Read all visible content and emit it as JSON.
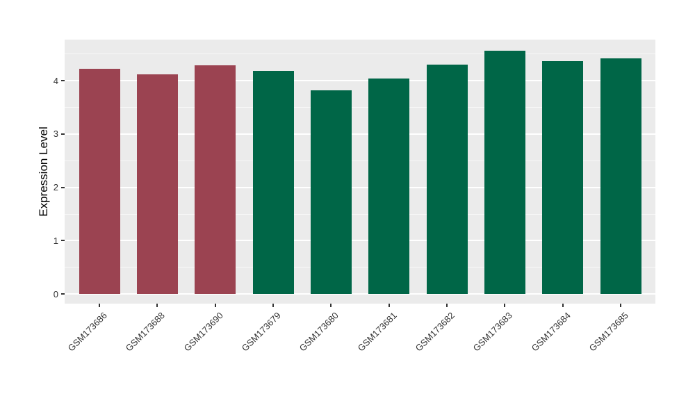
{
  "chart_data": {
    "type": "bar",
    "title": "",
    "ylabel": "Expression Level",
    "xlabel": "",
    "categories": [
      "GSM173686",
      "GSM173688",
      "GSM173690",
      "GSM173679",
      "GSM173680",
      "GSM173681",
      "GSM173682",
      "GSM173683",
      "GSM173684",
      "GSM173685"
    ],
    "values": [
      4.22,
      4.12,
      4.29,
      4.18,
      3.82,
      4.04,
      4.3,
      4.56,
      4.37,
      4.42
    ],
    "bar_colors": [
      "#9B4351",
      "#9B4351",
      "#9B4351",
      "#006647",
      "#006647",
      "#006647",
      "#006647",
      "#006647",
      "#006647",
      "#006647"
    ],
    "y_ticks": [
      "0",
      "1",
      "2",
      "3",
      "4"
    ],
    "y_tick_values": [
      0,
      1,
      2,
      3,
      4
    ],
    "y_minor_tick_values": [
      0.5,
      1.5,
      2.5,
      3.5,
      4.5
    ],
    "ylim": [
      -0.18,
      4.77
    ],
    "grid": true,
    "legend": "none",
    "colors": {
      "panel_bg": "#EBEBEB",
      "grid": "#FFFFFF",
      "tick_mark": "#333333",
      "axis_text": "#333333",
      "axis_title": "#000000",
      "figure_bg": "#FFFFFF"
    }
  }
}
